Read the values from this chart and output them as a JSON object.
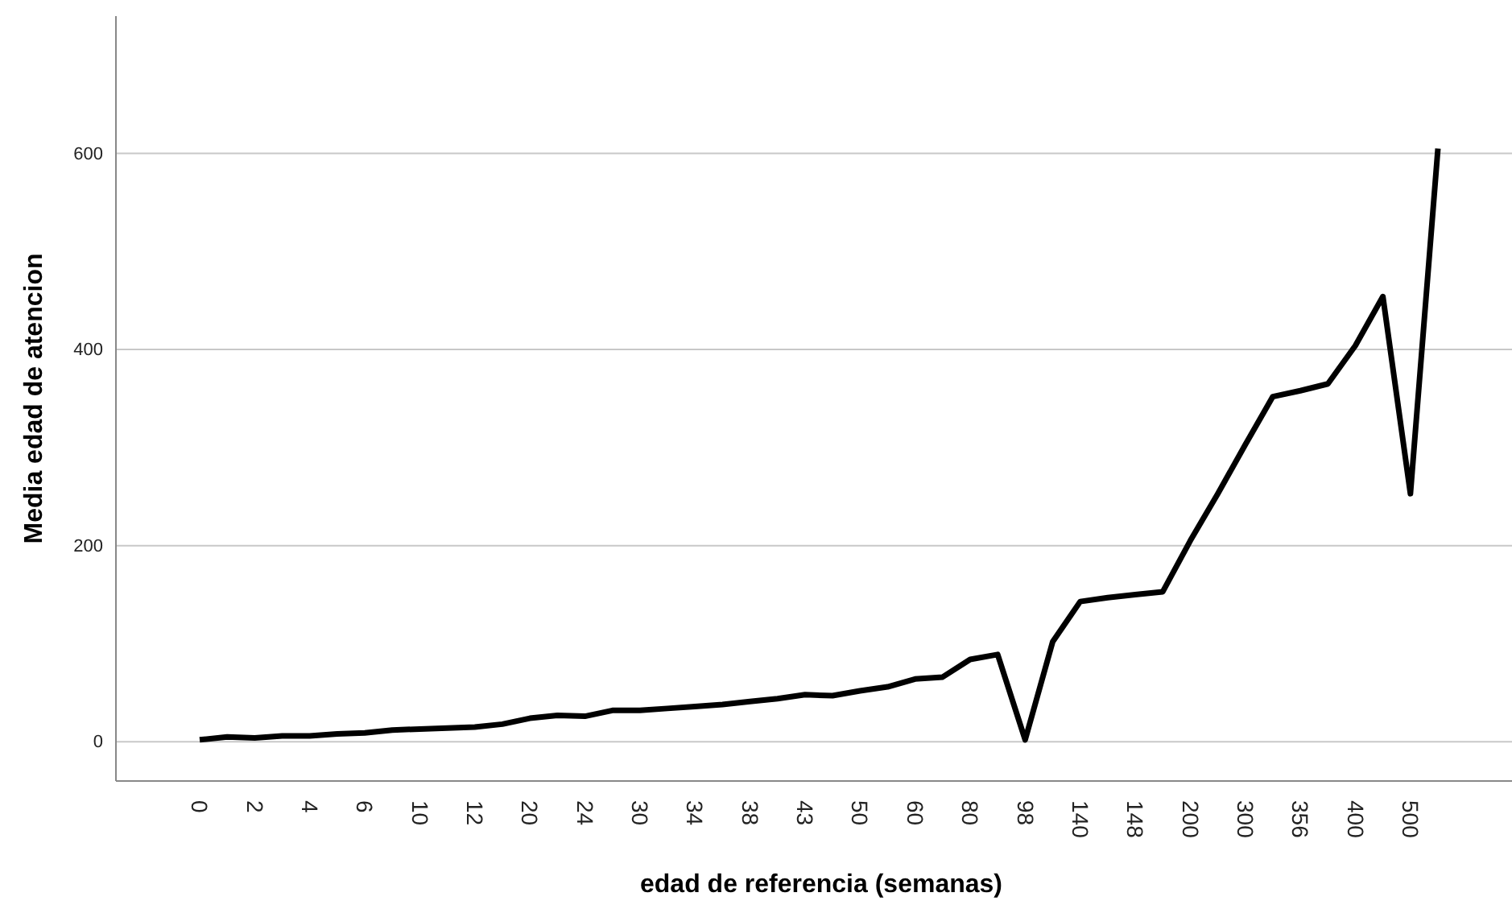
{
  "chart_data": {
    "type": "line",
    "xlabel": "edad de referencia (semanas)",
    "ylabel": "Media edad de atencion",
    "categories": [
      "0",
      null,
      "2",
      null,
      "4",
      null,
      "6",
      null,
      "10",
      null,
      "12",
      null,
      "20",
      null,
      "24",
      null,
      "30",
      null,
      "34",
      null,
      "38",
      null,
      "43",
      null,
      "50",
      null,
      "60",
      null,
      "80",
      null,
      "98",
      null,
      "140",
      null,
      "148",
      null,
      "200",
      null,
      "300",
      null,
      "356",
      null,
      "400",
      null,
      "500",
      null
    ],
    "series": [
      {
        "color": "#000000",
        "values": [
          2,
          5,
          4,
          6,
          6,
          8,
          9,
          12,
          13,
          14,
          15,
          18,
          24,
          27,
          26,
          32,
          32,
          34,
          36,
          38,
          41,
          44,
          48,
          47,
          52,
          56,
          64,
          66,
          84,
          89,
          2,
          102,
          143,
          147,
          150,
          153,
          205,
          253,
          303,
          352,
          358,
          365,
          404,
          454,
          253,
          605
        ]
      }
    ],
    "ylim": [
      -40,
      740
    ],
    "yticks": [
      0,
      200,
      400,
      600
    ],
    "grid": "y",
    "marker": "none",
    "line_style": "solid"
  }
}
